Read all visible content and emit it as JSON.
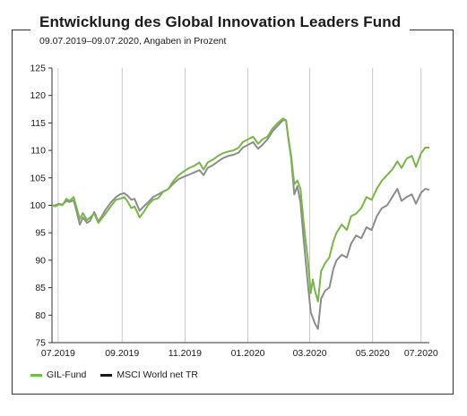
{
  "title": "Entwicklung des Global Innovation Leaders Fund",
  "subtitle": "09.07.2019–09.07.2020, Angaben in Prozent",
  "chart_data": {
    "type": "line",
    "title": "Entwicklung des Global Innovation Leaders Fund",
    "subtitle": "09.07.2019–09.07.2020, Angaben in Prozent",
    "ylim": [
      75,
      125
    ],
    "y_ticks": [
      125,
      120,
      115,
      110,
      105,
      100,
      95,
      90,
      85,
      80,
      75
    ],
    "xlim": [
      "2019-07-09",
      "2020-07-09"
    ],
    "x_ticks": [
      {
        "date": "2019-07-15",
        "label": "07.2019"
      },
      {
        "date": "2019-09-15",
        "label": "09.2019"
      },
      {
        "date": "2019-11-15",
        "label": "11.2019"
      },
      {
        "date": "2020-01-15",
        "label": "01.2020"
      },
      {
        "date": "2020-03-15",
        "label": "03.2020"
      },
      {
        "date": "2020-05-15",
        "label": "05.2020"
      },
      {
        "date": "2020-07-01",
        "label": "07.2020"
      }
    ],
    "grid": "vertical",
    "legend_position": "bottom-left",
    "series": [
      {
        "name": "GIL-Fund",
        "color": "#7ab648",
        "points": [
          [
            "2019-07-09",
            100
          ],
          [
            "2019-07-12",
            99.8
          ],
          [
            "2019-07-16",
            100.2
          ],
          [
            "2019-07-19",
            100
          ],
          [
            "2019-07-23",
            101.2
          ],
          [
            "2019-07-26",
            100.8
          ],
          [
            "2019-07-30",
            101.5
          ],
          [
            "2019-08-02",
            99.5
          ],
          [
            "2019-08-05",
            97.5
          ],
          [
            "2019-08-08",
            98.6
          ],
          [
            "2019-08-12",
            97.3
          ],
          [
            "2019-08-15",
            97.8
          ],
          [
            "2019-08-19",
            98.5
          ],
          [
            "2019-08-23",
            96.8
          ],
          [
            "2019-08-27",
            97.8
          ],
          [
            "2019-08-30",
            98.5
          ],
          [
            "2019-09-04",
            99.8
          ],
          [
            "2019-09-09",
            101
          ],
          [
            "2019-09-13",
            101.2
          ],
          [
            "2019-09-17",
            101.5
          ],
          [
            "2019-09-20",
            100.8
          ],
          [
            "2019-09-24",
            99.5
          ],
          [
            "2019-09-27",
            99.8
          ],
          [
            "2019-10-02",
            97.8
          ],
          [
            "2019-10-06",
            98.8
          ],
          [
            "2019-10-10",
            100
          ],
          [
            "2019-10-15",
            101
          ],
          [
            "2019-10-20",
            101.3
          ],
          [
            "2019-10-25",
            102.5
          ],
          [
            "2019-10-30",
            103
          ],
          [
            "2019-11-04",
            104.5
          ],
          [
            "2019-11-09",
            105.5
          ],
          [
            "2019-11-14",
            106.2
          ],
          [
            "2019-11-19",
            106.8
          ],
          [
            "2019-11-24",
            107.2
          ],
          [
            "2019-11-29",
            107.8
          ],
          [
            "2019-12-03",
            106.5
          ],
          [
            "2019-12-07",
            107.8
          ],
          [
            "2019-12-12",
            108.3
          ],
          [
            "2019-12-17",
            109
          ],
          [
            "2019-12-22",
            109.5
          ],
          [
            "2019-12-27",
            109.8
          ],
          [
            "2020-01-01",
            110
          ],
          [
            "2020-01-06",
            110.5
          ],
          [
            "2020-01-10",
            111.5
          ],
          [
            "2020-01-15",
            112
          ],
          [
            "2020-01-20",
            112.5
          ],
          [
            "2020-01-25",
            111.2
          ],
          [
            "2020-01-29",
            112
          ],
          [
            "2020-02-03",
            112.5
          ],
          [
            "2020-02-08",
            114
          ],
          [
            "2020-02-13",
            115
          ],
          [
            "2020-02-18",
            115.8
          ],
          [
            "2020-02-21",
            115.5
          ],
          [
            "2020-02-23",
            112.5
          ],
          [
            "2020-02-26",
            109
          ],
          [
            "2020-02-29",
            103.8
          ],
          [
            "2020-03-03",
            104.5
          ],
          [
            "2020-03-06",
            103
          ],
          [
            "2020-03-09",
            97
          ],
          [
            "2020-03-11",
            93.5
          ],
          [
            "2020-03-13",
            90.5
          ],
          [
            "2020-03-16",
            84
          ],
          [
            "2020-03-18",
            86.5
          ],
          [
            "2020-03-20",
            84.5
          ],
          [
            "2020-03-23",
            82.5
          ],
          [
            "2020-03-26",
            88
          ],
          [
            "2020-03-30",
            89.5
          ],
          [
            "2020-04-03",
            90.5
          ],
          [
            "2020-04-07",
            93.5
          ],
          [
            "2020-04-10",
            95
          ],
          [
            "2020-04-15",
            96.5
          ],
          [
            "2020-04-20",
            95.5
          ],
          [
            "2020-04-24",
            98
          ],
          [
            "2020-04-29",
            98.5
          ],
          [
            "2020-05-04",
            99.5
          ],
          [
            "2020-05-09",
            101.5
          ],
          [
            "2020-05-14",
            101
          ],
          [
            "2020-05-19",
            103
          ],
          [
            "2020-05-24",
            104.5
          ],
          [
            "2020-05-29",
            105.5
          ],
          [
            "2020-06-03",
            106.5
          ],
          [
            "2020-06-08",
            108
          ],
          [
            "2020-06-12",
            106.8
          ],
          [
            "2020-06-17",
            108.5
          ],
          [
            "2020-06-22",
            109
          ],
          [
            "2020-06-26",
            107
          ],
          [
            "2020-07-01",
            109.5
          ],
          [
            "2020-07-05",
            110.5
          ],
          [
            "2020-07-09",
            110.5
          ]
        ]
      },
      {
        "name": "MSCI World net TR",
        "color": "#8c8c8c",
        "points": [
          [
            "2019-07-09",
            100
          ],
          [
            "2019-07-12",
            100
          ],
          [
            "2019-07-16",
            100.3
          ],
          [
            "2019-07-19",
            100.1
          ],
          [
            "2019-07-23",
            100.8
          ],
          [
            "2019-07-26",
            100.6
          ],
          [
            "2019-07-30",
            100.9
          ],
          [
            "2019-08-02",
            98.8
          ],
          [
            "2019-08-05",
            96.5
          ],
          [
            "2019-08-08",
            97.8
          ],
          [
            "2019-08-12",
            96.8
          ],
          [
            "2019-08-15",
            97.2
          ],
          [
            "2019-08-19",
            98.8
          ],
          [
            "2019-08-23",
            97
          ],
          [
            "2019-08-27",
            98.2
          ],
          [
            "2019-08-30",
            99.2
          ],
          [
            "2019-09-04",
            100.5
          ],
          [
            "2019-09-09",
            101.5
          ],
          [
            "2019-09-13",
            102
          ],
          [
            "2019-09-17",
            102.2
          ],
          [
            "2019-09-20",
            101.8
          ],
          [
            "2019-09-24",
            101
          ],
          [
            "2019-09-27",
            101.2
          ],
          [
            "2019-10-02",
            99
          ],
          [
            "2019-10-06",
            99.8
          ],
          [
            "2019-10-10",
            100.5
          ],
          [
            "2019-10-15",
            101.5
          ],
          [
            "2019-10-20",
            102
          ],
          [
            "2019-10-25",
            102.5
          ],
          [
            "2019-10-30",
            103
          ],
          [
            "2019-11-04",
            104
          ],
          [
            "2019-11-09",
            104.8
          ],
          [
            "2019-11-14",
            105.2
          ],
          [
            "2019-11-19",
            105.6
          ],
          [
            "2019-11-24",
            106
          ],
          [
            "2019-11-29",
            106.4
          ],
          [
            "2019-12-03",
            105.5
          ],
          [
            "2019-12-07",
            106.8
          ],
          [
            "2019-12-12",
            107.3
          ],
          [
            "2019-12-17",
            108
          ],
          [
            "2019-12-22",
            108.6
          ],
          [
            "2019-12-27",
            109
          ],
          [
            "2020-01-01",
            109.2
          ],
          [
            "2020-01-06",
            109.6
          ],
          [
            "2020-01-10",
            110.5
          ],
          [
            "2020-01-15",
            111
          ],
          [
            "2020-01-20",
            111.5
          ],
          [
            "2020-01-25",
            110.3
          ],
          [
            "2020-01-29",
            111
          ],
          [
            "2020-02-03",
            112
          ],
          [
            "2020-02-08",
            113.5
          ],
          [
            "2020-02-13",
            114.5
          ],
          [
            "2020-02-18",
            115.5
          ],
          [
            "2020-02-21",
            115.5
          ],
          [
            "2020-02-23",
            112.5
          ],
          [
            "2020-02-26",
            108.5
          ],
          [
            "2020-02-29",
            102
          ],
          [
            "2020-03-03",
            103.5
          ],
          [
            "2020-03-06",
            100.5
          ],
          [
            "2020-03-09",
            94
          ],
          [
            "2020-03-11",
            90
          ],
          [
            "2020-03-13",
            86
          ],
          [
            "2020-03-16",
            80.5
          ],
          [
            "2020-03-18",
            79.5
          ],
          [
            "2020-03-20",
            78.5
          ],
          [
            "2020-03-23",
            77.5
          ],
          [
            "2020-03-26",
            83
          ],
          [
            "2020-03-30",
            84.5
          ],
          [
            "2020-04-03",
            85
          ],
          [
            "2020-04-07",
            88.5
          ],
          [
            "2020-04-10",
            90
          ],
          [
            "2020-04-15",
            91
          ],
          [
            "2020-04-20",
            90.5
          ],
          [
            "2020-04-24",
            93
          ],
          [
            "2020-04-29",
            94.5
          ],
          [
            "2020-05-04",
            94
          ],
          [
            "2020-05-09",
            96
          ],
          [
            "2020-05-14",
            95.5
          ],
          [
            "2020-05-19",
            98
          ],
          [
            "2020-05-24",
            99.5
          ],
          [
            "2020-05-29",
            100
          ],
          [
            "2020-06-03",
            101.5
          ],
          [
            "2020-06-08",
            103
          ],
          [
            "2020-06-12",
            100.8
          ],
          [
            "2020-06-17",
            101.5
          ],
          [
            "2020-06-22",
            102
          ],
          [
            "2020-06-26",
            100.3
          ],
          [
            "2020-07-01",
            102.3
          ],
          [
            "2020-07-05",
            103
          ],
          [
            "2020-07-09",
            102.8
          ]
        ]
      }
    ]
  }
}
